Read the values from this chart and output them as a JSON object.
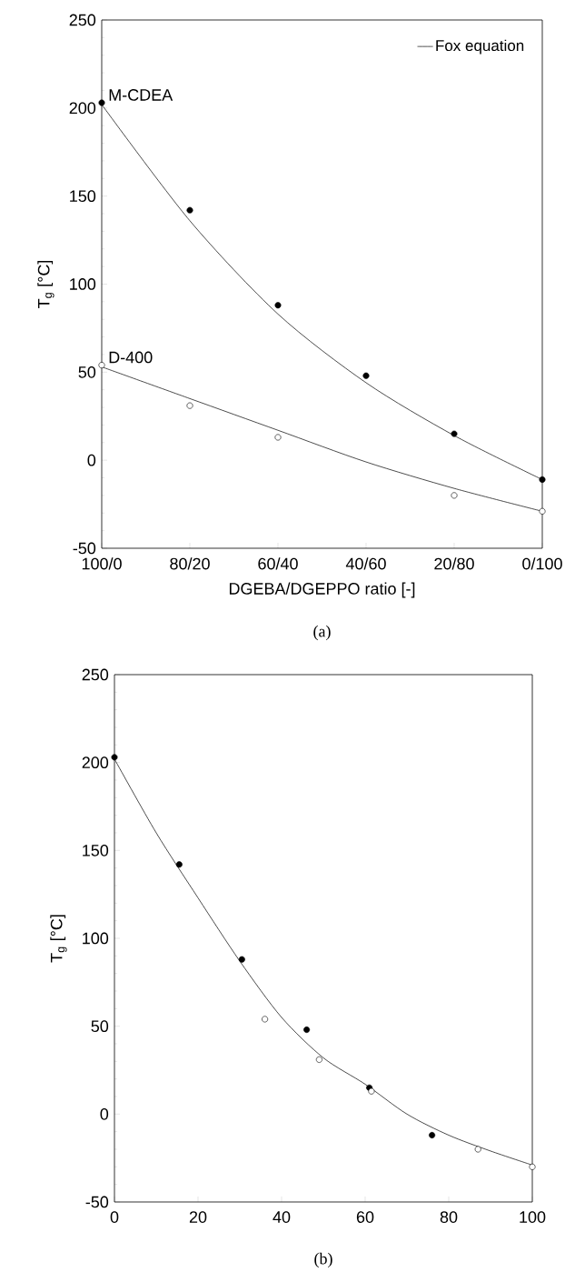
{
  "chart_data": [
    {
      "type": "scatter",
      "xlabel": "DGEBA/DGEPPO ratio [-]",
      "ylabel": "T$_{g}$ [°C]",
      "annotations": [
        "(a)"
      ],
      "categories": [
        "100/0",
        "80/20",
        "60/40",
        "40/60",
        "20/80",
        "0/100"
      ],
      "ylim": [
        -50,
        250
      ],
      "yticks": [
        -50,
        0,
        50,
        100,
        150,
        200,
        250
      ],
      "legend": "top right",
      "marker": "circle",
      "series": [
        {
          "name": "M-CDEA",
          "color": "#000000",
          "values": [
            203,
            142,
            88,
            48,
            15,
            -11
          ]
        },
        {
          "name": "D-400",
          "color": "#ffffff",
          "values": [
            54,
            31,
            13,
            null,
            -20,
            -29
          ]
        },
        {
          "name": "Fox equation",
          "type": "line",
          "marker": "none",
          "color": "#000000",
          "values": [
            202,
            136,
            83,
            44,
            14,
            -11
          ]
        },
        {
          "type": "line",
          "marker": "none",
          "color": "#000000",
          "values": [
            53,
            35,
            17,
            -1,
            -16,
            -29
          ]
        }
      ]
    },
    {
      "type": "scatter",
      "ylabel": "T$_{g}$ [°C]",
      "annotations": [
        "(b)"
      ],
      "xlim": [
        0,
        100
      ],
      "xticks": [
        0,
        20,
        40,
        60,
        80,
        100
      ],
      "ylim": [
        -50,
        250
      ],
      "yticks": [
        -50,
        0,
        50,
        100,
        150,
        200,
        250
      ],
      "marker": "circle",
      "series": [
        {
          "color": "#000000",
          "x": [
            0,
            15.5,
            30.5,
            46,
            61,
            76
          ],
          "values": [
            203,
            142,
            88,
            48,
            15,
            -12
          ]
        },
        {
          "color": "#ffffff",
          "x": [
            36,
            49,
            61.5,
            87,
            100
          ],
          "values": [
            54,
            31,
            13,
            -20,
            -30
          ]
        },
        {
          "type": "line",
          "marker": "none",
          "color": "#000000",
          "x": [
            0,
            10,
            20,
            30,
            40,
            50,
            60,
            70,
            80,
            90,
            100
          ],
          "values": [
            202,
            160,
            123,
            87,
            55,
            32,
            17,
            0,
            -12,
            -21,
            -29
          ]
        }
      ]
    }
  ]
}
